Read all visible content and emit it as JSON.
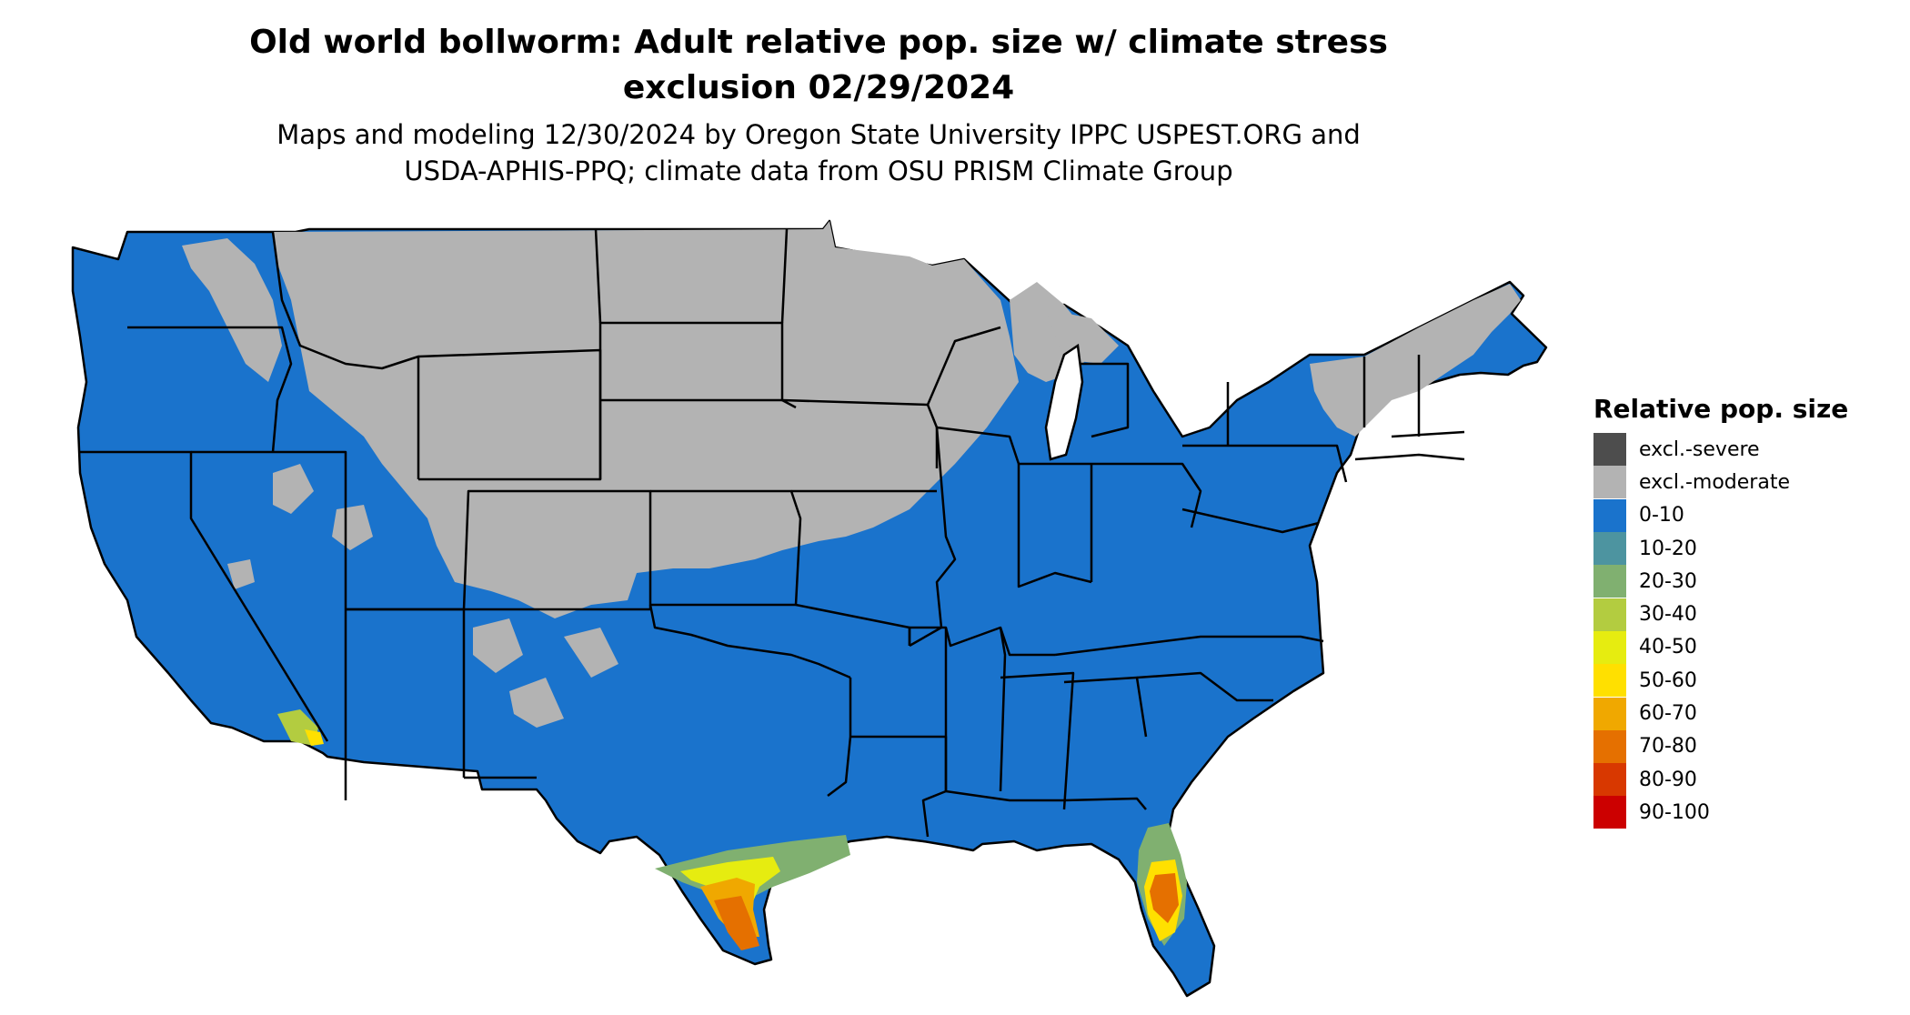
{
  "title_line1": "Old world bollworm: Adult relative pop. size w/ climate stress",
  "title_line2": "exclusion 02/29/2024",
  "subtitle_line1": "Maps and modeling 12/30/2024 by Oregon State University IPPC USPEST.ORG and",
  "subtitle_line2": "USDA-APHIS-PPQ; climate data from OSU PRISM Climate Group",
  "legend": {
    "title": "Relative pop. size",
    "items": [
      {
        "label": "excl.-severe",
        "color": "#4d4d4d"
      },
      {
        "label": "excl.-moderate",
        "color": "#b3b3b3"
      },
      {
        "label": "0-10",
        "color": "#1a73cc"
      },
      {
        "label": "10-20",
        "color": "#4d94a0"
      },
      {
        "label": "20-30",
        "color": "#80b070"
      },
      {
        "label": "30-40",
        "color": "#b3cc40"
      },
      {
        "label": "40-50",
        "color": "#e6ec10"
      },
      {
        "label": "50-60",
        "color": "#ffe000"
      },
      {
        "label": "60-70",
        "color": "#f0a800"
      },
      {
        "label": "70-80",
        "color": "#e57000"
      },
      {
        "label": "80-90",
        "color": "#d83800"
      },
      {
        "label": "90-100",
        "color": "#cc0000"
      }
    ]
  }
}
